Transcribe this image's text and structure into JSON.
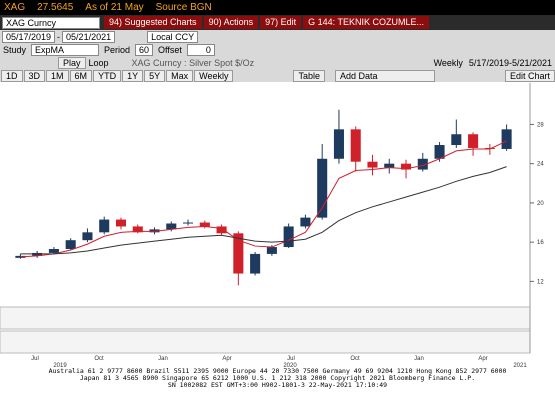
{
  "header": {
    "ticker": "XAG",
    "price": "27.5645",
    "as_of": "As of 21 May",
    "source": "Source BGN"
  },
  "toolbar": {
    "security": "XAG Curncy",
    "menus": [
      "94) Suggested Charts",
      "90) Actions",
      "97) Edit",
      "G 144: TEKNIK COZUMLE..."
    ]
  },
  "controls": {
    "start": "05/17/2019",
    "end": "05/21/2021",
    "currency": "Local CCY",
    "study_label": "Study",
    "study": "ExpMA",
    "period_label": "Period",
    "period": "60",
    "offset_label": "Offset",
    "offset": "0",
    "play": "Play",
    "loop": "Loop",
    "chart_name": "XAG Curncy : Silver Spot $/Oz",
    "frequency": "Weekly",
    "range": "5/17/2019-5/21/2021",
    "periods": [
      "1D",
      "3D",
      "1M",
      "6M",
      "YTD",
      "1Y",
      "5Y",
      "Max",
      "Weekly"
    ],
    "table": "Table",
    "add_data": "Add Data",
    "edit_chart": "Edit Chart"
  },
  "chart_data": {
    "type": "candlestick",
    "title": "XAG Curncy : Silver Spot $/Oz",
    "open": [
      14.4,
      14.6,
      14.9,
      15.3,
      16.2,
      17.0,
      18.3,
      17.6,
      17.0,
      17.3,
      17.9,
      18.0,
      17.6,
      16.9,
      12.8,
      14.8,
      15.5,
      17.6,
      18.5,
      24.5,
      27.5,
      24.2,
      23.6,
      24.0,
      23.4,
      24.5,
      25.9,
      27.0,
      25.6,
      25.5
    ],
    "high": [
      14.8,
      15.1,
      15.5,
      16.4,
      17.4,
      18.6,
      18.5,
      17.8,
      17.5,
      18.1,
      18.3,
      18.2,
      17.8,
      17.1,
      15.0,
      15.7,
      17.9,
      18.8,
      26.0,
      29.5,
      27.8,
      24.9,
      24.5,
      24.4,
      25.1,
      26.2,
      28.5,
      27.2,
      26.0,
      28.0
    ],
    "low": [
      14.3,
      14.4,
      14.8,
      15.2,
      16.0,
      16.8,
      17.3,
      16.9,
      16.8,
      17.1,
      17.7,
      17.4,
      16.7,
      11.6,
      12.6,
      14.6,
      15.4,
      17.4,
      18.3,
      24.0,
      23.2,
      22.8,
      23.0,
      22.5,
      23.2,
      24.2,
      25.6,
      24.8,
      24.9,
      25.3
    ],
    "close": [
      14.6,
      14.9,
      15.3,
      16.2,
      17.0,
      18.3,
      17.6,
      17.0,
      17.3,
      17.9,
      18.0,
      17.6,
      16.9,
      12.8,
      14.8,
      15.5,
      17.6,
      18.5,
      24.5,
      27.5,
      24.2,
      23.6,
      24.0,
      23.4,
      24.5,
      25.9,
      27.0,
      25.6,
      25.5,
      27.5
    ],
    "up_color": "#1f3a5f",
    "down_color": "#d0202a",
    "series": [
      {
        "name": "ExpMA",
        "color": "#d0202a",
        "values": [
          14.5,
          14.6,
          14.8,
          15.2,
          15.8,
          16.6,
          17.0,
          17.1,
          17.1,
          17.3,
          17.5,
          17.6,
          17.4,
          16.2,
          15.6,
          15.5,
          16.2,
          17.0,
          19.5,
          22.5,
          23.3,
          23.4,
          23.6,
          23.5,
          23.8,
          24.5,
          25.3,
          25.5,
          25.5,
          26.3
        ]
      },
      {
        "name": "ExpMA 60",
        "color": "#333333",
        "values": [
          14.8,
          14.8,
          14.8,
          14.9,
          15.1,
          15.4,
          15.7,
          15.9,
          16.1,
          16.3,
          16.5,
          16.6,
          16.7,
          16.4,
          16.1,
          16.0,
          16.1,
          16.3,
          17.0,
          18.2,
          19.0,
          19.6,
          20.1,
          20.6,
          21.1,
          21.6,
          22.2,
          22.7,
          23.1,
          23.7
        ]
      }
    ],
    "ylim": [
      10,
      31
    ],
    "yticks": [
      12,
      16,
      20,
      24,
      28
    ],
    "xlabels": [
      "Jul",
      "Oct",
      "Jan",
      "Apr",
      "Jul",
      "Oct",
      "Jan",
      "Apr"
    ],
    "years": [
      "2019",
      "2020",
      "2021"
    ]
  },
  "footer": [
    "Australia 61 2 9777 8600 Brazil 5511 2395 9000 Europe 44 20 7330 7500 Germany 49 69 9204 1210 Hong Kong 852 2977 6000",
    "Japan 81 3 4565 8900      Singapore 65 6212 1000      U.S. 1 212 318 2000          Copyright 2021 Bloomberg Finance L.P.",
    "SN 1002082 EST  GMT+3:00 H902-1801-3 22-May-2021 17:10:49"
  ]
}
